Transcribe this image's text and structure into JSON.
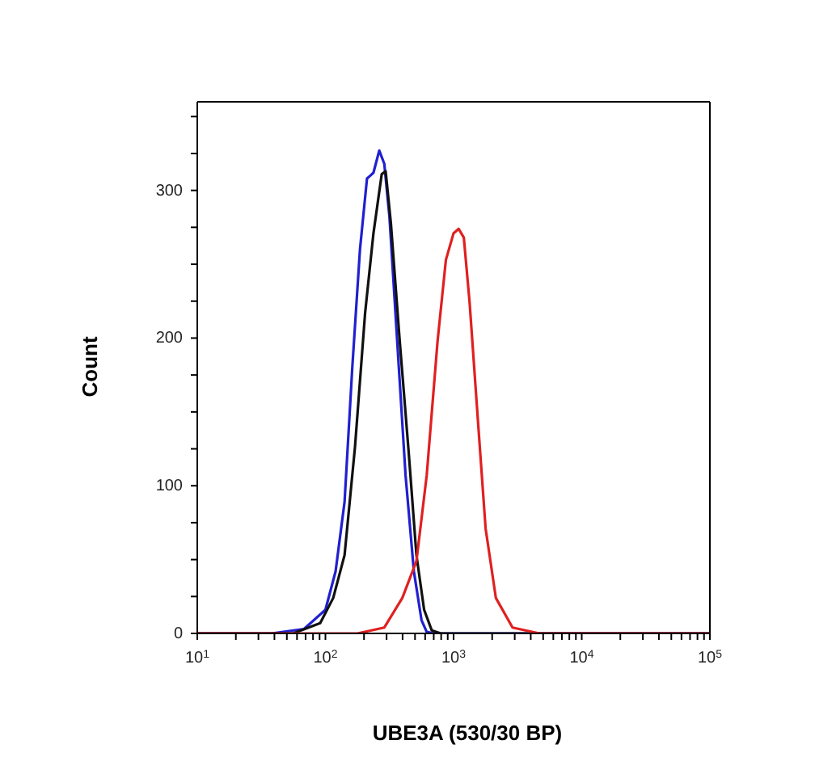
{
  "chart_data": {
    "type": "line",
    "xlabel": "UBE3A (530/30 BP)",
    "ylabel": "Count",
    "log": "x",
    "xlim": [
      10,
      100000
    ],
    "xticks": [
      {
        "value": 10,
        "label": "10$^{1}$"
      },
      {
        "value": 20,
        "label": null
      },
      {
        "value": 30,
        "label": null
      },
      {
        "value": 40,
        "label": null
      },
      {
        "value": 50,
        "label": null
      },
      {
        "value": 60,
        "label": null
      },
      {
        "value": 70,
        "label": null
      },
      {
        "value": 80,
        "label": null
      },
      {
        "value": 90,
        "label": null
      },
      {
        "value": 100,
        "label": "10$^{2}$"
      },
      {
        "value": 200,
        "label": null
      },
      {
        "value": 300,
        "label": null
      },
      {
        "value": 400,
        "label": null
      },
      {
        "value": 500,
        "label": null
      },
      {
        "value": 600,
        "label": null
      },
      {
        "value": 700,
        "label": null
      },
      {
        "value": 800,
        "label": null
      },
      {
        "value": 900,
        "label": null
      },
      {
        "value": 1000,
        "label": "10$^{3}$"
      },
      {
        "value": 2000,
        "label": null
      },
      {
        "value": 3000,
        "label": null
      },
      {
        "value": 4000,
        "label": null
      },
      {
        "value": 5000,
        "label": null
      },
      {
        "value": 6000,
        "label": null
      },
      {
        "value": 7000,
        "label": null
      },
      {
        "value": 8000,
        "label": null
      },
      {
        "value": 9000,
        "label": null
      },
      {
        "value": 10000,
        "label": "10$^{4}$"
      },
      {
        "value": 20000,
        "label": null
      },
      {
        "value": 30000,
        "label": null
      },
      {
        "value": 40000,
        "label": null
      },
      {
        "value": 50000,
        "label": null
      },
      {
        "value": 60000,
        "label": null
      },
      {
        "value": 70000,
        "label": null
      },
      {
        "value": 80000,
        "label": null
      },
      {
        "value": 90000,
        "label": null
      },
      {
        "value": 100000,
        "label": "10$^{5}$"
      }
    ],
    "ylim": [
      0,
      360
    ],
    "yticks": [
      0,
      {
        "value": 25,
        "label": null
      },
      {
        "value": 50,
        "label": null
      },
      {
        "value": 75,
        "label": null
      },
      100,
      {
        "value": 125,
        "label": null
      },
      {
        "value": 150,
        "label": null
      },
      {
        "value": 175,
        "label": null
      },
      200,
      {
        "value": 225,
        "label": null
      },
      {
        "value": 250,
        "label": null
      },
      {
        "value": 275,
        "label": null
      },
      300,
      {
        "value": 325,
        "label": null
      },
      {
        "value": 350,
        "label": null
      }
    ],
    "marker": "none",
    "line_style": "solid",
    "series": [
      {
        "color": "#2020d0",
        "x": [
          10,
          38,
          68,
          100,
          120,
          141,
          162,
          186,
          211,
          224,
          237,
          263,
          288,
          316,
          363,
          422,
          490,
          562,
          617,
          700,
          100000
        ],
        "values": [
          0,
          0,
          3,
          16,
          42,
          89,
          180,
          260,
          308,
          310,
          312,
          327,
          318,
          282,
          198,
          107,
          42,
          9,
          1,
          0,
          0
        ]
      },
      {
        "color": "#111111",
        "x": [
          10,
          56,
          91,
          115,
          141,
          170,
          204,
          237,
          275,
          295,
          324,
          380,
          447,
          513,
          589,
          676,
          794,
          100000
        ],
        "values": [
          0,
          0,
          7,
          24,
          53,
          126,
          217,
          271,
          311,
          313,
          278,
          198,
          122,
          53,
          16,
          2,
          0,
          0
        ]
      },
      {
        "color": "#e02020",
        "x": [
          10,
          178,
          288,
          398,
          513,
          617,
          750,
          871,
          1000,
          1096,
          1202,
          1334,
          1549,
          1778,
          2138,
          2884,
          4677,
          100000
        ],
        "values": [
          0,
          0,
          4,
          24,
          49,
          107,
          198,
          253,
          271,
          274,
          268,
          224,
          144,
          71,
          24,
          4,
          0,
          0
        ]
      }
    ]
  }
}
